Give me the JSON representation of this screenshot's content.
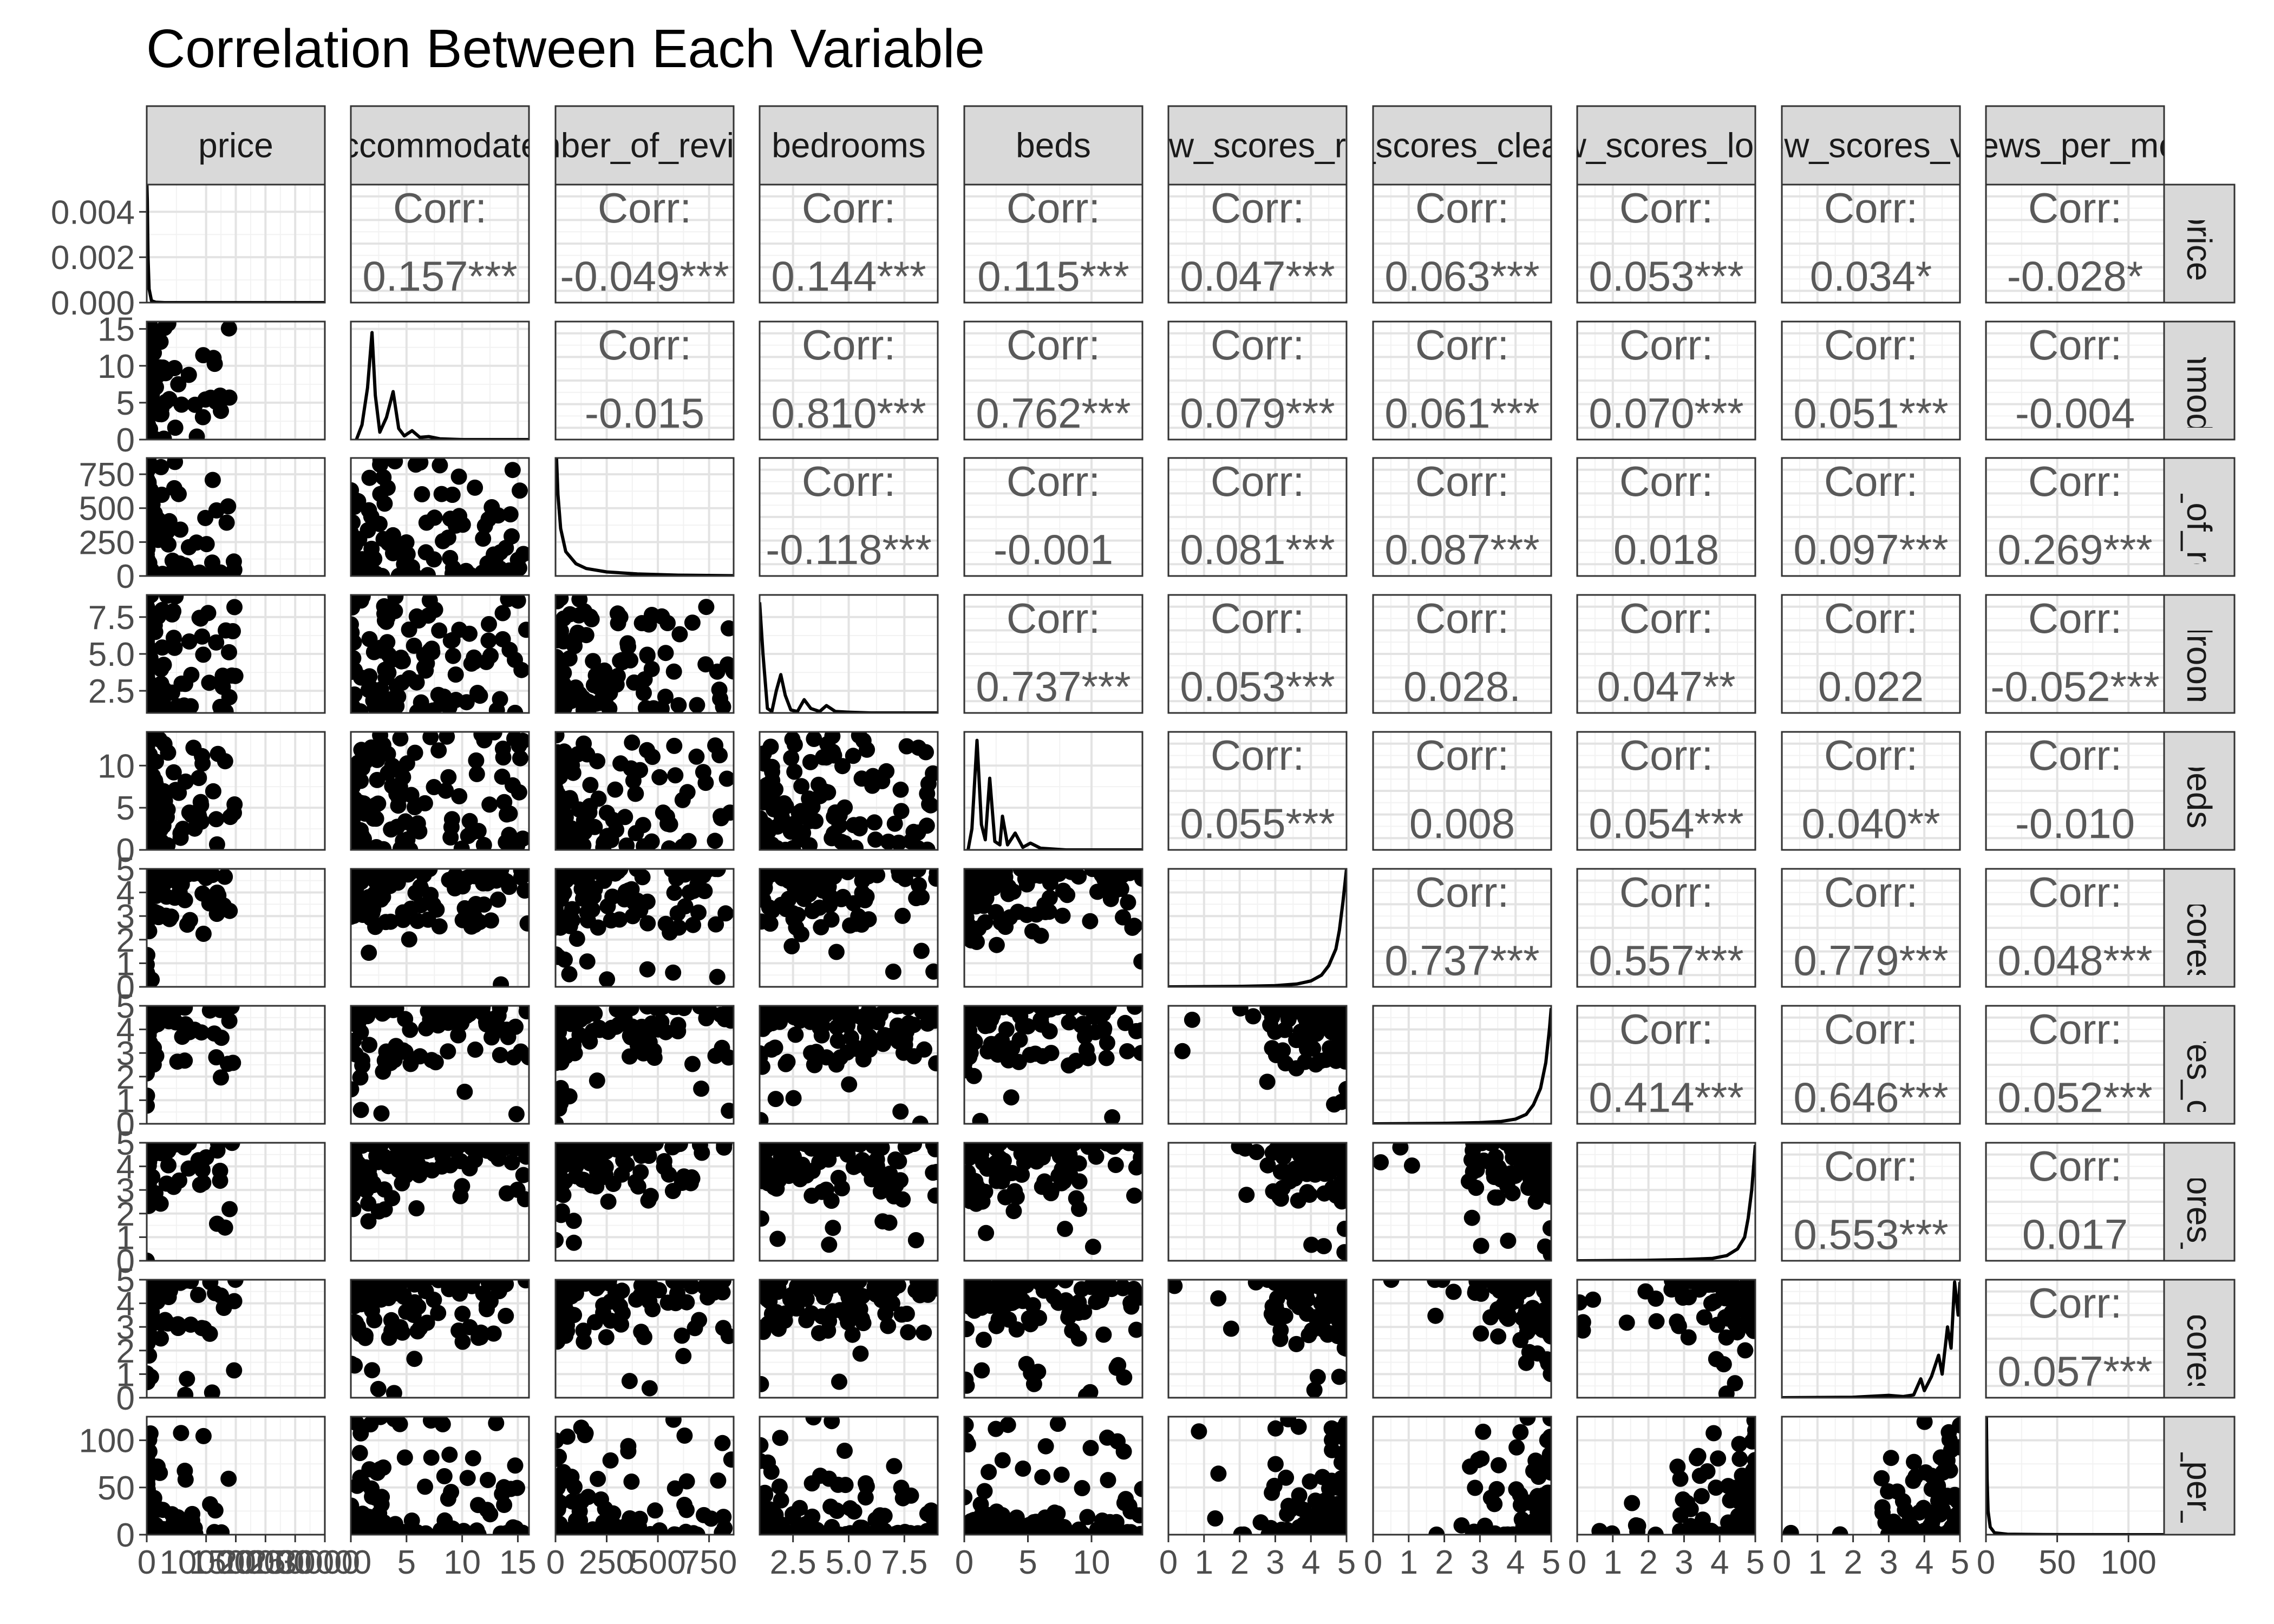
{
  "chart_data": {
    "type": "scatter",
    "subtype": "pairs-plot",
    "title": "Correlation Between Each Variable",
    "variables": [
      {
        "column_label": "price",
        "row_label": "price",
        "tick_labels": [
          "0",
          "10000",
          "15000",
          "20000",
          "25000",
          "30000"
        ],
        "y_tick_labels": [
          "0.000",
          "0.002",
          "0.004"
        ],
        "y_tick_values": [
          0,
          0.002,
          0.004
        ],
        "ylim": [
          0,
          0.0052
        ]
      },
      {
        "column_label": "accommodates",
        "row_label": "accommodates",
        "tick_labels": [
          "0",
          "5",
          "10",
          "15"
        ],
        "y_tick_labels": [
          "0",
          "5",
          "10",
          "15"
        ],
        "y_tick_values": [
          0,
          5,
          10,
          15
        ],
        "ylim": [
          0,
          16
        ]
      },
      {
        "column_label": "number_of_reviews",
        "row_label": "number_of_reviews",
        "tick_labels": [
          "0",
          "250",
          "500",
          "750"
        ],
        "y_tick_labels": [
          "0",
          "250",
          "500",
          "750"
        ],
        "y_tick_values": [
          0,
          250,
          500,
          750
        ],
        "ylim": [
          0,
          870
        ]
      },
      {
        "column_label": "bedrooms",
        "row_label": "bedrooms",
        "tick_labels": [
          "2.5",
          "5.0",
          "7.5"
        ],
        "y_tick_labels": [
          "2.5",
          "5.0",
          "7.5"
        ],
        "y_tick_values": [
          2.5,
          5.0,
          7.5
        ],
        "ylim": [
          1,
          9
        ]
      },
      {
        "column_label": "beds",
        "row_label": "beds",
        "tick_labels": [
          "0",
          "5",
          "10"
        ],
        "y_tick_labels": [
          "0",
          "5",
          "10"
        ],
        "y_tick_values": [
          0,
          5,
          10
        ],
        "ylim": [
          0,
          14
        ]
      },
      {
        "column_label": "review_scores_rating",
        "row_label": "review_scores_rating",
        "tick_labels": [
          "0",
          "1",
          "2",
          "3",
          "4",
          "5"
        ],
        "y_tick_labels": [
          "0",
          "1",
          "2",
          "3",
          "4",
          "5"
        ],
        "y_tick_values": [
          0,
          1,
          2,
          3,
          4,
          5
        ],
        "ylim": [
          0,
          5
        ]
      },
      {
        "column_label": "review_scores_cleanliness",
        "row_label": "review_scores_cleanliness",
        "tick_labels": [
          "0",
          "1",
          "2",
          "3",
          "4",
          "5"
        ],
        "y_tick_labels": [
          "0",
          "1",
          "2",
          "3",
          "4",
          "5"
        ],
        "y_tick_values": [
          0,
          1,
          2,
          3,
          4,
          5
        ],
        "ylim": [
          0,
          5
        ]
      },
      {
        "column_label": "review_scores_location",
        "row_label": "review_scores_location",
        "tick_labels": [
          "0",
          "1",
          "2",
          "3",
          "4",
          "5"
        ],
        "y_tick_labels": [
          "0",
          "1",
          "2",
          "3",
          "4",
          "5"
        ],
        "y_tick_values": [
          0,
          1,
          2,
          3,
          4,
          5
        ],
        "ylim": [
          0,
          5
        ]
      },
      {
        "column_label": "review_scores_value",
        "row_label": "review_scores_value",
        "tick_labels": [
          "0",
          "1",
          "2",
          "3",
          "4",
          "5"
        ],
        "y_tick_labels": [
          "0",
          "1",
          "2",
          "3",
          "4",
          "5"
        ],
        "y_tick_values": [
          0,
          1,
          2,
          3,
          4,
          5
        ],
        "ylim": [
          0,
          5
        ]
      },
      {
        "column_label": "reviews_per_month",
        "row_label": "reviews_per_month",
        "tick_labels": [
          "0",
          "50",
          "100"
        ],
        "y_tick_labels": [
          "0",
          "50",
          "100"
        ],
        "y_tick_values": [
          0,
          50,
          100
        ],
        "ylim": [
          0,
          125
        ]
      }
    ],
    "x_axis_ranges": [
      [
        0,
        30000
      ],
      [
        0,
        16
      ],
      [
        0,
        870
      ],
      [
        1,
        9
      ],
      [
        0,
        14
      ],
      [
        0,
        5
      ],
      [
        0,
        5
      ],
      [
        0,
        5
      ],
      [
        0,
        5
      ],
      [
        0,
        125
      ]
    ],
    "x_tick_values": [
      [
        0,
        10000,
        15000,
        20000,
        25000,
        30000
      ],
      [
        0,
        5,
        10,
        15
      ],
      [
        0,
        250,
        500,
        750
      ],
      [
        2.5,
        5.0,
        7.5
      ],
      [
        0,
        5,
        10
      ],
      [
        0,
        1,
        2,
        3,
        4,
        5
      ],
      [
        0,
        1,
        2,
        3,
        4,
        5
      ],
      [
        0,
        1,
        2,
        3,
        4,
        5
      ],
      [
        0,
        1,
        2,
        3,
        4,
        5
      ],
      [
        0,
        50,
        100
      ]
    ],
    "correlation_label": "Corr:",
    "correlations": [
      {
        "row": 0,
        "col": 1,
        "value": "0.157***"
      },
      {
        "row": 0,
        "col": 2,
        "value": "-0.049***"
      },
      {
        "row": 0,
        "col": 3,
        "value": "0.144***"
      },
      {
        "row": 0,
        "col": 4,
        "value": "0.115***"
      },
      {
        "row": 0,
        "col": 5,
        "value": "0.047***"
      },
      {
        "row": 0,
        "col": 6,
        "value": "0.063***"
      },
      {
        "row": 0,
        "col": 7,
        "value": "0.053***"
      },
      {
        "row": 0,
        "col": 8,
        "value": "0.034*"
      },
      {
        "row": 0,
        "col": 9,
        "value": "-0.028*"
      },
      {
        "row": 1,
        "col": 2,
        "value": "-0.015"
      },
      {
        "row": 1,
        "col": 3,
        "value": "0.810***"
      },
      {
        "row": 1,
        "col": 4,
        "value": "0.762***"
      },
      {
        "row": 1,
        "col": 5,
        "value": "0.079***"
      },
      {
        "row": 1,
        "col": 6,
        "value": "0.061***"
      },
      {
        "row": 1,
        "col": 7,
        "value": "0.070***"
      },
      {
        "row": 1,
        "col": 8,
        "value": "0.051***"
      },
      {
        "row": 1,
        "col": 9,
        "value": "-0.004"
      },
      {
        "row": 2,
        "col": 3,
        "value": "-0.118***"
      },
      {
        "row": 2,
        "col": 4,
        "value": "-0.001"
      },
      {
        "row": 2,
        "col": 5,
        "value": "0.081***"
      },
      {
        "row": 2,
        "col": 6,
        "value": "0.087***"
      },
      {
        "row": 2,
        "col": 7,
        "value": "0.018"
      },
      {
        "row": 2,
        "col": 8,
        "value": "0.097***"
      },
      {
        "row": 2,
        "col": 9,
        "value": "0.269***"
      },
      {
        "row": 3,
        "col": 4,
        "value": "0.737***"
      },
      {
        "row": 3,
        "col": 5,
        "value": "0.053***"
      },
      {
        "row": 3,
        "col": 6,
        "value": "0.028."
      },
      {
        "row": 3,
        "col": 7,
        "value": "0.047**"
      },
      {
        "row": 3,
        "col": 8,
        "value": "0.022"
      },
      {
        "row": 3,
        "col": 9,
        "value": "-0.052***"
      },
      {
        "row": 4,
        "col": 5,
        "value": "0.055***"
      },
      {
        "row": 4,
        "col": 6,
        "value": "0.008"
      },
      {
        "row": 4,
        "col": 7,
        "value": "0.054***"
      },
      {
        "row": 4,
        "col": 8,
        "value": "0.040**"
      },
      {
        "row": 4,
        "col": 9,
        "value": "-0.010"
      },
      {
        "row": 5,
        "col": 6,
        "value": "0.737***"
      },
      {
        "row": 5,
        "col": 7,
        "value": "0.557***"
      },
      {
        "row": 5,
        "col": 8,
        "value": "0.779***"
      },
      {
        "row": 5,
        "col": 9,
        "value": "0.048***"
      },
      {
        "row": 6,
        "col": 7,
        "value": "0.414***"
      },
      {
        "row": 6,
        "col": 8,
        "value": "0.646***"
      },
      {
        "row": 6,
        "col": 9,
        "value": "0.052***"
      },
      {
        "row": 7,
        "col": 8,
        "value": "0.553***"
      },
      {
        "row": 7,
        "col": 9,
        "value": "0.017"
      },
      {
        "row": 8,
        "col": 9,
        "value": "0.057***"
      }
    ],
    "density_curves": [
      [
        [
          30,
          0.0052
        ],
        [
          100,
          0.0045
        ],
        [
          220,
          0.002
        ],
        [
          400,
          0.0006
        ],
        [
          800,
          8e-05
        ],
        [
          1500,
          2e-05
        ],
        [
          3000,
          0
        ],
        [
          30000,
          0
        ]
      ],
      [
        [
          0.5,
          0
        ],
        [
          1.0,
          2
        ],
        [
          1.5,
          7
        ],
        [
          1.9,
          14.5
        ],
        [
          2.2,
          6
        ],
        [
          2.6,
          1
        ],
        [
          3.2,
          3
        ],
        [
          3.8,
          6.5
        ],
        [
          4.3,
          1.5
        ],
        [
          4.8,
          0.5
        ],
        [
          5.5,
          1.2
        ],
        [
          6.2,
          0.3
        ],
        [
          7,
          0.4
        ],
        [
          8,
          0.1
        ],
        [
          10,
          0
        ],
        [
          16,
          0
        ]
      ],
      [
        [
          5,
          870
        ],
        [
          12,
          600
        ],
        [
          25,
          350
        ],
        [
          50,
          180
        ],
        [
          100,
          90
        ],
        [
          150,
          55
        ],
        [
          250,
          30
        ],
        [
          400,
          15
        ],
        [
          600,
          6
        ],
        [
          870,
          2
        ]
      ],
      [
        [
          1.0,
          8.5
        ],
        [
          1.15,
          5
        ],
        [
          1.35,
          1.3
        ],
        [
          1.55,
          1.1
        ],
        [
          1.75,
          2.5
        ],
        [
          1.95,
          3.6
        ],
        [
          2.15,
          2.2
        ],
        [
          2.4,
          1.2
        ],
        [
          2.7,
          1.1
        ],
        [
          3.0,
          1.9
        ],
        [
          3.3,
          1.3
        ],
        [
          3.7,
          1.1
        ],
        [
          4.0,
          1.5
        ],
        [
          4.4,
          1.1
        ],
        [
          5,
          1.05
        ],
        [
          6,
          1.0
        ],
        [
          9,
          1.0
        ]
      ],
      [
        [
          0.3,
          0
        ],
        [
          0.6,
          2.5
        ],
        [
          1.0,
          13
        ],
        [
          1.35,
          3
        ],
        [
          1.65,
          1.2
        ],
        [
          2.0,
          8.5
        ],
        [
          2.4,
          1
        ],
        [
          2.8,
          0.6
        ],
        [
          3.0,
          4
        ],
        [
          3.4,
          0.6
        ],
        [
          4.0,
          2
        ],
        [
          4.6,
          0.3
        ],
        [
          5.2,
          0.8
        ],
        [
          6,
          0.2
        ],
        [
          8,
          0
        ],
        [
          14,
          0
        ]
      ],
      [
        [
          0,
          0
        ],
        [
          2,
          0.02
        ],
        [
          3,
          0.05
        ],
        [
          3.6,
          0.12
        ],
        [
          4.0,
          0.25
        ],
        [
          4.3,
          0.5
        ],
        [
          4.5,
          0.9
        ],
        [
          4.7,
          1.6
        ],
        [
          4.8,
          2.4
        ],
        [
          4.9,
          3.6
        ],
        [
          5.0,
          5.0
        ]
      ],
      [
        [
          0,
          0
        ],
        [
          2,
          0.02
        ],
        [
          3,
          0.05
        ],
        [
          3.6,
          0.1
        ],
        [
          4.0,
          0.2
        ],
        [
          4.3,
          0.4
        ],
        [
          4.5,
          0.8
        ],
        [
          4.7,
          1.5
        ],
        [
          4.85,
          2.6
        ],
        [
          4.95,
          4.0
        ],
        [
          5.0,
          4.9
        ]
      ],
      [
        [
          0,
          0
        ],
        [
          2,
          0.02
        ],
        [
          3,
          0.05
        ],
        [
          3.8,
          0.1
        ],
        [
          4.2,
          0.22
        ],
        [
          4.5,
          0.5
        ],
        [
          4.7,
          1.0
        ],
        [
          4.8,
          1.8
        ],
        [
          4.9,
          3.0
        ],
        [
          5.0,
          4.9
        ]
      ],
      [
        [
          0,
          0
        ],
        [
          2,
          0.02
        ],
        [
          3,
          0.1
        ],
        [
          3.4,
          0.05
        ],
        [
          3.7,
          0.12
        ],
        [
          3.9,
          0.8
        ],
        [
          4.0,
          0.3
        ],
        [
          4.2,
          0.9
        ],
        [
          4.4,
          1.8
        ],
        [
          4.5,
          1.0
        ],
        [
          4.65,
          3.0
        ],
        [
          4.75,
          2.1
        ],
        [
          4.85,
          4.9
        ],
        [
          4.95,
          3.5
        ],
        [
          5.0,
          4.9
        ]
      ],
      [
        [
          0.3,
          125
        ],
        [
          0.8,
          60
        ],
        [
          1.5,
          25
        ],
        [
          3,
          8
        ],
        [
          6,
          2
        ],
        [
          15,
          0.5
        ],
        [
          40,
          0.1
        ],
        [
          125,
          0
        ]
      ]
    ]
  }
}
